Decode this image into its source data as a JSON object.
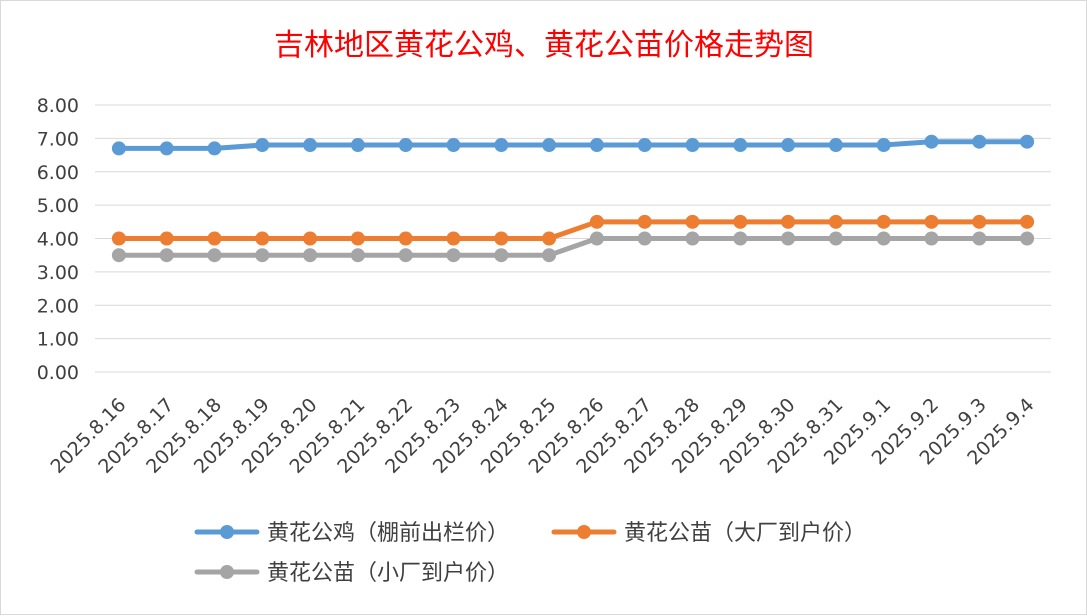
{
  "chart_data": {
    "type": "line",
    "title": "吉林地区黄花公鸡、黄花公苗价格走势图",
    "xlabel": "",
    "ylabel": "",
    "categories": [
      "2025.8.16",
      "2025.8.17",
      "2025.8.18",
      "2025.8.19",
      "2025.8.20",
      "2025.8.21",
      "2025.8.22",
      "2025.8.23",
      "2025.8.24",
      "2025.8.25",
      "2025.8.26",
      "2025.8.27",
      "2025.8.28",
      "2025.8.29",
      "2025.8.30",
      "2025.8.31",
      "2025.9.1",
      "2025.9.2",
      "2025.9.3",
      "2025.9.4"
    ],
    "y_ticks": [
      "0.00",
      "1.00",
      "2.00",
      "3.00",
      "4.00",
      "5.00",
      "6.00",
      "7.00",
      "8.00"
    ],
    "ylim": [
      0,
      8
    ],
    "grid": true,
    "legend_position": "bottom",
    "series": [
      {
        "name": "黄花公鸡（棚前出栏价）",
        "color": "#5b9bd5",
        "values": [
          6.7,
          6.7,
          6.7,
          6.8,
          6.8,
          6.8,
          6.8,
          6.8,
          6.8,
          6.8,
          6.8,
          6.8,
          6.8,
          6.8,
          6.8,
          6.8,
          6.8,
          6.9,
          6.9,
          6.9
        ]
      },
      {
        "name": "黄花公苗（大厂到户价）",
        "color": "#ed7d31",
        "values": [
          4.0,
          4.0,
          4.0,
          4.0,
          4.0,
          4.0,
          4.0,
          4.0,
          4.0,
          4.0,
          4.5,
          4.5,
          4.5,
          4.5,
          4.5,
          4.5,
          4.5,
          4.5,
          4.5,
          4.5
        ]
      },
      {
        "name": "黄花公苗（小厂到户价）",
        "color": "#a5a5a5",
        "values": [
          3.5,
          3.5,
          3.5,
          3.5,
          3.5,
          3.5,
          3.5,
          3.5,
          3.5,
          3.5,
          4.0,
          4.0,
          4.0,
          4.0,
          4.0,
          4.0,
          4.0,
          4.0,
          4.0,
          4.0
        ]
      }
    ]
  }
}
